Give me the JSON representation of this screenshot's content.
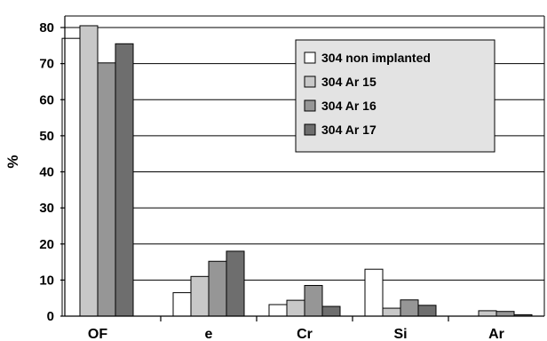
{
  "chart_data": {
    "type": "bar",
    "categories": [
      "OF",
      "e",
      "Cr",
      "Si",
      "Ar"
    ],
    "ylabel": "%",
    "xlabel": "",
    "title": "",
    "ylim": [
      0,
      80
    ],
    "yticks": [
      0,
      10,
      20,
      30,
      40,
      50,
      60,
      70,
      80
    ],
    "grid": true,
    "legend_position": "top-right",
    "series": [
      {
        "name": "304 non implanted",
        "color": "#ffffff",
        "values": [
          77,
          6.5,
          3.2,
          13,
          0
        ]
      },
      {
        "name": "304 Ar 15",
        "color": "#c8c8c8",
        "values": [
          80.5,
          11,
          4.4,
          2.2,
          1.5
        ]
      },
      {
        "name": "304 Ar 16",
        "color": "#969696",
        "values": [
          70.2,
          15.2,
          8.5,
          4.5,
          1.3
        ]
      },
      {
        "name": "304 Ar 17",
        "color": "#6e6e6e",
        "values": [
          75.5,
          18,
          2.7,
          3,
          0.4
        ]
      }
    ]
  }
}
